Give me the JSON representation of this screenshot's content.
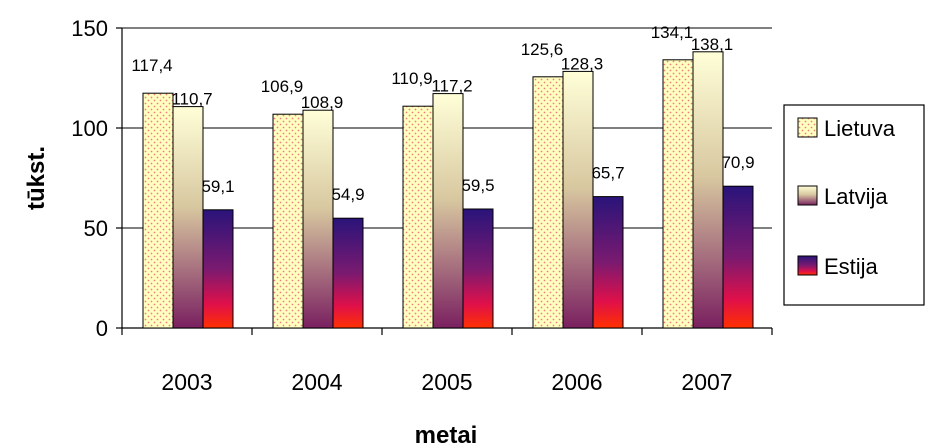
{
  "chart_data": {
    "type": "bar",
    "categories": [
      "2003",
      "2004",
      "2005",
      "2006",
      "2007"
    ],
    "series": [
      {
        "name": "Lietuva",
        "values": [
          117.4,
          106.9,
          110.9,
          125.6,
          134.1
        ],
        "labels": [
          "117,4",
          "106,9",
          "110,9",
          "125,6",
          "134,1"
        ]
      },
      {
        "name": "Latvija",
        "values": [
          110.7,
          108.9,
          117.2,
          128.3,
          138.1
        ],
        "labels": [
          "110,7",
          "108,9",
          "117,2",
          "128,3",
          "138,1"
        ]
      },
      {
        "name": "Estija",
        "values": [
          59.1,
          54.9,
          59.5,
          65.7,
          70.9
        ],
        "labels": [
          "59,1",
          "54,9",
          "59,5",
          "65,7",
          "70,9"
        ]
      }
    ],
    "xlabel": "metai",
    "ylabel": "tūkst.",
    "ylim": [
      0,
      150
    ],
    "yticks": [
      "0",
      "50",
      "100",
      "150"
    ],
    "grid": true,
    "legend": "right",
    "colors": {
      "Lietuva": "#FFFFC0",
      "Lietuva_dots": "#F08080",
      "Latvija_top": "#FFFFD8",
      "Latvija_bottom": "#7A2060",
      "Estija_top": "#2A147A",
      "Estija_bottom": "#FF3000"
    }
  }
}
